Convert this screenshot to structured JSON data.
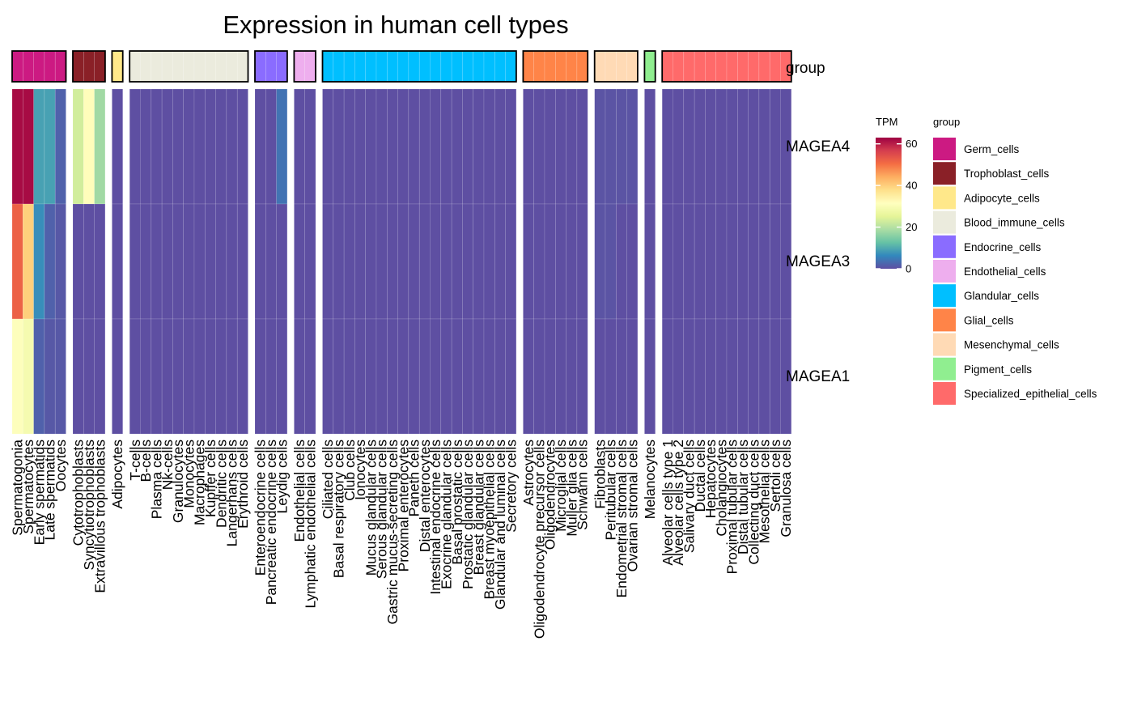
{
  "chart_data": {
    "type": "heatmap",
    "title": "Expression in human cell types",
    "annotation_label": "group",
    "value_legend_title": "TPM",
    "value_legend_ticks": [
      0,
      20,
      40,
      60
    ],
    "value_range": [
      0,
      63
    ],
    "colormap": [
      "#5e4fa2",
      "#3288bd",
      "#66c2a5",
      "#abdda4",
      "#e6f598",
      "#ffffbf",
      "#fee08b",
      "#fdae61",
      "#f46d43",
      "#d53e4f",
      "#9e0142"
    ],
    "group_legend_title": "group",
    "rows": [
      "MAGEA4",
      "MAGEA3",
      "MAGEA1"
    ],
    "groups": [
      {
        "name": "Germ_cells",
        "color": "#cc1a82",
        "cells": [
          "Spermatogonia",
          "Spermatocytes",
          "Early spermatids",
          "Late spermatids",
          "Oocytes"
        ],
        "values": [
          [
            62,
            62,
            9,
            9,
            2
          ],
          [
            52,
            40,
            7,
            2,
            1
          ],
          [
            31,
            29,
            2,
            1,
            1
          ]
        ]
      },
      {
        "name": "Trophoblast_cells",
        "color": "#8a2027",
        "cells": [
          "Cytotrophoblasts",
          "Syncytiotrophoblasts",
          "Extravillous trophoblasts"
        ],
        "values": [
          [
            23,
            32,
            18
          ],
          [
            0,
            0,
            0
          ],
          [
            0,
            0,
            0
          ]
        ]
      },
      {
        "name": "Adipocyte_cells",
        "color": "#ffe88a",
        "cells": [
          "Adipocytes"
        ],
        "values": [
          [
            0
          ],
          [
            0
          ],
          [
            0
          ]
        ]
      },
      {
        "name": "Blood_immune_cells",
        "color": "#ebebdd",
        "cells": [
          "T-cells",
          "B-cells",
          "Plasma cells",
          "Nk-cells",
          "Granulocytes",
          "Monocytes",
          "Macrophages",
          "Kupffer cells",
          "Dendritic cells",
          "Langerhans cells",
          "Erythroid cells"
        ],
        "values": [
          [
            0,
            0,
            0,
            0,
            0,
            0,
            0,
            0,
            0,
            0,
            0
          ],
          [
            0,
            0,
            0,
            0,
            0,
            0,
            0,
            0,
            0,
            0,
            0
          ],
          [
            0,
            0,
            0,
            0,
            0,
            0,
            0,
            0,
            0,
            0,
            0
          ]
        ]
      },
      {
        "name": "Endocrine_cells",
        "color": "#8a6cff",
        "cells": [
          "Enteroendocrine cells",
          "Pancreatic endocrine cells",
          "Leydig cells"
        ],
        "values": [
          [
            0,
            0,
            4
          ],
          [
            0,
            0,
            0
          ],
          [
            0,
            0,
            0
          ]
        ]
      },
      {
        "name": "Endothelial_cells",
        "color": "#eeaeee",
        "cells": [
          "Endothelial cells",
          "Lymphatic endothelial cells"
        ],
        "values": [
          [
            0,
            0
          ],
          [
            0,
            0
          ],
          [
            0,
            0
          ]
        ]
      },
      {
        "name": "Glandular_cells",
        "color": "#00bfff",
        "cells": [
          "Ciliated cells",
          "Basal respiratory cells",
          "Club cells",
          "Ionocytes",
          "Mucus glandular cells",
          "Serous glandular cells",
          "Gastric mucus-secreting cells",
          "Proximal enterocytes",
          "Paneth cells",
          "Distal enterocytes",
          "Intestinal endocrine cells",
          "Exocrine glandular cells",
          "Basal prostatic cells",
          "Prostatic glandular cells",
          "Breast glandular cells",
          "Breast myoepithelial cells",
          "Glandular and luminal cells",
          "Secretory cells"
        ],
        "values": [
          [
            0,
            0,
            0,
            0,
            0,
            0,
            0,
            0,
            0,
            0,
            0,
            0,
            0,
            0,
            0,
            0,
            0,
            0
          ],
          [
            0,
            0,
            0,
            0,
            0,
            0,
            0,
            0,
            0,
            0,
            0,
            0,
            0,
            0,
            0,
            0,
            0,
            0
          ],
          [
            0,
            0,
            0,
            0,
            0,
            0,
            0,
            0,
            0,
            0,
            0,
            0,
            0,
            0,
            0,
            0,
            0,
            0
          ]
        ]
      },
      {
        "name": "Glial_cells",
        "color": "#ff8448",
        "cells": [
          "Astrocytes",
          "Oligodendrocyte precursor cells",
          "Oligodendrocytes",
          "Microglial cells",
          "Muller glia cells",
          "Schwann cells"
        ],
        "values": [
          [
            0,
            0,
            0,
            0,
            0,
            0
          ],
          [
            0,
            0,
            0,
            0,
            0,
            0
          ],
          [
            0,
            0,
            0,
            0,
            0,
            0
          ]
        ]
      },
      {
        "name": "Mesenchymal_cells",
        "color": "#ffdab5",
        "cells": [
          "Fibroblasts",
          "Peritubular cells",
          "Endometrial stromal cells",
          "Ovarian stromal cells"
        ],
        "values": [
          [
            0.5,
            0.5,
            0.5,
            0.5
          ],
          [
            0.5,
            0.5,
            0,
            0
          ],
          [
            0,
            0,
            0,
            0
          ]
        ]
      },
      {
        "name": "Pigment_cells",
        "color": "#90ee90",
        "cells": [
          "Melanocytes"
        ],
        "values": [
          [
            0
          ],
          [
            0
          ],
          [
            0
          ]
        ]
      },
      {
        "name": "Specialized_epithelial_cells",
        "color": "#ff6a6a",
        "cells": [
          "Alveolar cells type 1",
          "Alveolar cells type 2",
          "Salivary duct cells",
          "Ductal cells",
          "Hepatocytes",
          "Cholangiocytes",
          "Proximal tubular cells",
          "Distal tubular cells",
          "Collecting duct cells",
          "Mesothelial cells",
          "Sertoli cells",
          "Granulosa cells"
        ],
        "values": [
          [
            0,
            0,
            0,
            0,
            0,
            0,
            0,
            0,
            0,
            0,
            0,
            0
          ],
          [
            0,
            0,
            0,
            0,
            0,
            0,
            0,
            0,
            0,
            0,
            0,
            0
          ],
          [
            0,
            0,
            0,
            0,
            0,
            0,
            0,
            0,
            0,
            0,
            0,
            0
          ]
        ]
      }
    ]
  }
}
